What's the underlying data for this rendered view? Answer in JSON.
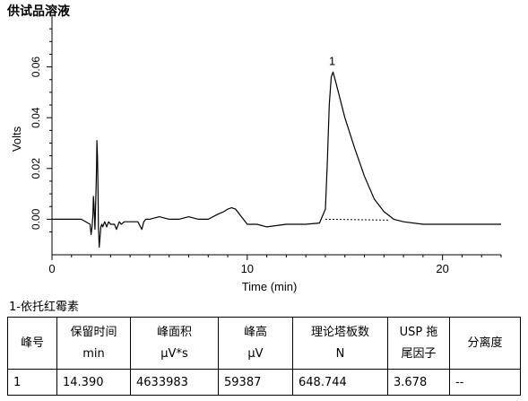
{
  "title": "供试品溶液",
  "chart_data": {
    "type": "line",
    "title": "供试品溶液",
    "xlabel": "Time (min)",
    "ylabel": "Volts",
    "xlim": [
      0,
      23
    ],
    "ylim": [
      -0.014,
      0.08
    ],
    "x_ticks": [
      0,
      10,
      20
    ],
    "x_tick_labels": [
      "0",
      "10",
      "20"
    ],
    "y_ticks": [
      0.0,
      0.02,
      0.04,
      0.06
    ],
    "y_tick_labels": [
      "0.00",
      "0.02",
      "0.04",
      "0.06"
    ],
    "grid": false,
    "annotations": [
      {
        "text": "1",
        "x": 14.39,
        "y": 0.058
      }
    ],
    "series": [
      {
        "x": [
          0.0,
          1.5,
          1.95,
          2.0,
          2.05,
          2.1,
          2.12,
          2.15,
          2.18,
          2.2,
          2.22,
          2.25,
          2.28,
          2.3,
          2.33,
          2.36,
          2.38,
          2.42,
          2.46,
          2.5,
          2.55,
          2.6,
          2.7,
          2.8,
          2.9,
          3.0,
          3.2,
          3.3,
          3.45,
          3.55,
          3.7,
          4.0,
          4.4,
          4.6,
          4.7,
          4.8,
          5.0,
          5.5,
          6.0,
          6.5,
          7.0,
          7.5,
          8.0,
          8.5,
          8.8,
          9.0,
          9.2,
          9.4,
          9.6,
          9.8,
          10.0,
          10.5,
          11.0,
          12.0,
          13.0,
          13.7,
          14.0,
          14.1,
          14.2,
          14.3,
          14.39,
          14.5,
          14.7,
          15.0,
          15.5,
          16.0,
          16.5,
          17.0,
          17.5,
          18.0,
          19.0,
          20.0,
          21.0,
          22.0,
          23.0
        ],
        "y": [
          0.0,
          0.0,
          -0.002,
          -0.006,
          -0.003,
          0.002,
          0.009,
          0.006,
          0.0,
          -0.004,
          0.002,
          0.01,
          0.02,
          0.031,
          0.024,
          0.01,
          -0.003,
          -0.011,
          -0.007,
          -0.003,
          -0.002,
          -0.003,
          -0.001,
          -0.003,
          -0.001,
          -0.002,
          -0.002,
          -0.004,
          -0.001,
          -0.002,
          -0.001,
          -0.001,
          -0.001,
          -0.004,
          -0.001,
          0.0,
          0.0,
          0.001,
          0.0,
          0.0,
          0.001,
          0.0,
          0.0,
          0.002,
          0.003,
          0.004,
          0.0045,
          0.004,
          0.002,
          0.0,
          -0.002,
          -0.002,
          -0.003,
          -0.002,
          -0.002,
          -0.0015,
          0.004,
          0.022,
          0.045,
          0.056,
          0.058,
          0.055,
          0.049,
          0.04,
          0.028,
          0.017,
          0.008,
          0.003,
          0.0,
          -0.001,
          -0.002,
          -0.002,
          -0.002,
          -0.002,
          -0.002
        ]
      }
    ],
    "baseline": {
      "style": "dashed",
      "x": [
        14.0,
        17.3
      ]
    }
  },
  "peak_caption": "1-依托红霉素",
  "table": {
    "headers": [
      [
        "峰号"
      ],
      [
        "保留时间",
        "min"
      ],
      [
        "峰面积",
        "µV*s"
      ],
      [
        "峰高",
        "µV"
      ],
      [
        "理论塔板数",
        "N"
      ],
      [
        "USP 拖",
        "尾因子"
      ],
      [
        "分离度"
      ]
    ],
    "rows": [
      [
        "1",
        "14.390",
        "4633983",
        "59387",
        "648.744",
        "3.678",
        "--"
      ]
    ]
  }
}
